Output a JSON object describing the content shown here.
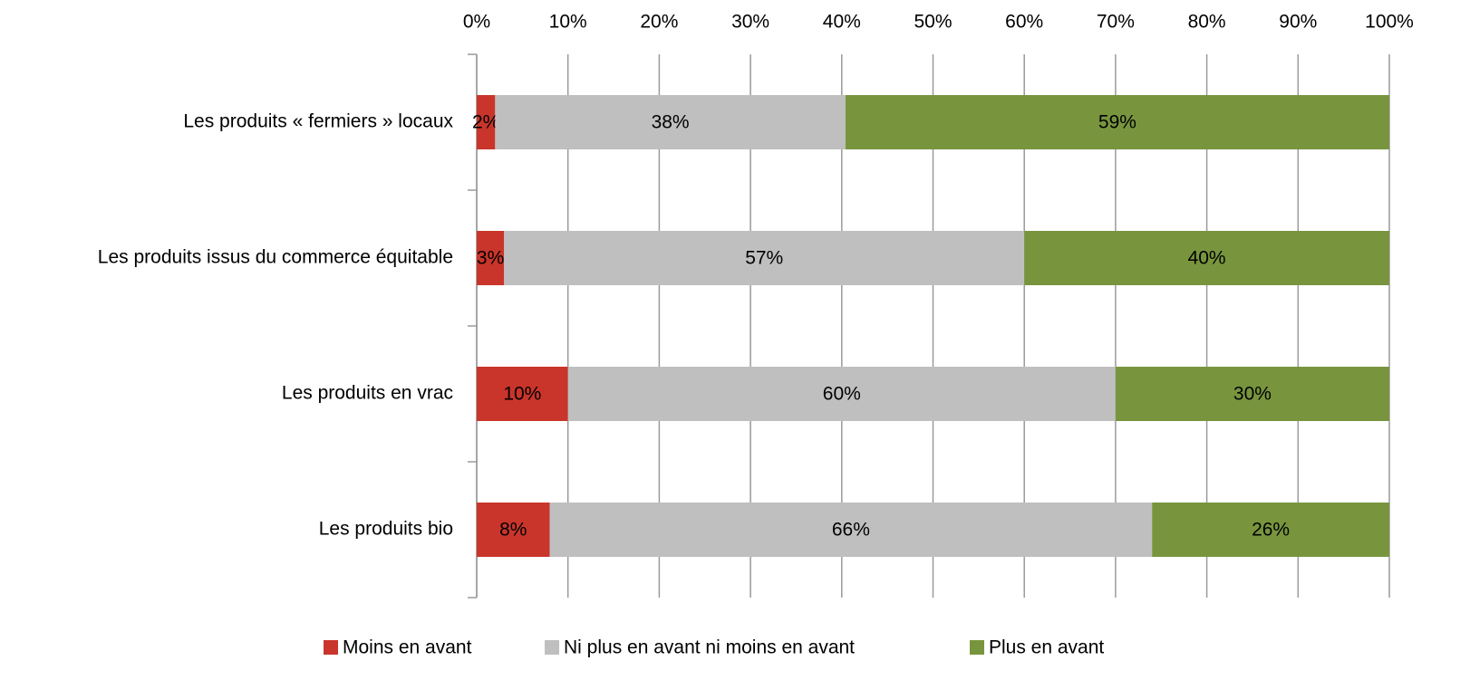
{
  "chart_data": {
    "type": "bar",
    "orientation": "horizontal",
    "stack": "percent",
    "categories": [
      "Les produits « fermiers » locaux",
      "Les produits issus du commerce équitable",
      "Les produits en vrac",
      "Les produits bio"
    ],
    "series": [
      {
        "name": "Moins en avant",
        "color": "#c9352b",
        "values": [
          2,
          3,
          10,
          8
        ],
        "value_labels": [
          "2%",
          "3%",
          "10%",
          "8%"
        ]
      },
      {
        "name": "Ni plus en avant ni moins en avant",
        "color": "#bfbfbf",
        "values": [
          38,
          57,
          60,
          66
        ],
        "value_labels": [
          "38%",
          "57%",
          "60%",
          "66%"
        ]
      },
      {
        "name": "Plus en avant",
        "color": "#78953e",
        "values": [
          59,
          40,
          30,
          26
        ],
        "value_labels": [
          "59%",
          "40%",
          "30%",
          "26%"
        ]
      }
    ],
    "xlim": [
      0,
      100
    ],
    "xticks": [
      {
        "value": 0,
        "label": "0%"
      },
      {
        "value": 10,
        "label": "10%"
      },
      {
        "value": 20,
        "label": "20%"
      },
      {
        "value": 30,
        "label": "30%"
      },
      {
        "value": 40,
        "label": "40%"
      },
      {
        "value": 50,
        "label": "50%"
      },
      {
        "value": 60,
        "label": "60%"
      },
      {
        "value": 70,
        "label": "70%"
      },
      {
        "value": 80,
        "label": "80%"
      },
      {
        "value": 90,
        "label": "90%"
      },
      {
        "value": 100,
        "label": "100%"
      }
    ],
    "grid": true,
    "legend": "bottom"
  }
}
